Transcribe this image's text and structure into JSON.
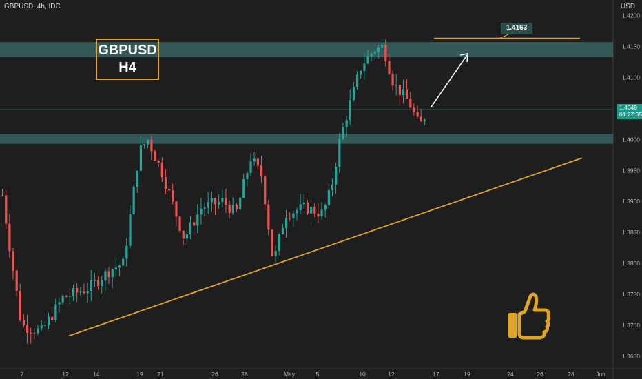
{
  "header": {
    "symbol_line": "GBPUSD, 4h, IDC",
    "currency": "USD"
  },
  "overlay": {
    "title_line1": "GBPUSD",
    "title_line2": "H4",
    "target_label": "1.4163"
  },
  "current_price": {
    "price": "1.4049",
    "countdown": "01:27:35"
  },
  "icons": {
    "thumb": "thumbs-up-icon",
    "arrow": "up-right-arrow-icon"
  },
  "colors": {
    "background": "#1e1e1e",
    "up": "#26a69a",
    "down": "#ef5350",
    "zone": "#3e6e6c",
    "trendline": "#e0a526",
    "axis_text": "#b2b5be"
  },
  "chart_data": {
    "type": "candlestick",
    "ylim": [
      1.363,
      1.4225
    ],
    "yticks": [
      "1.3650",
      "1.3700",
      "1.3750",
      "1.3800",
      "1.3850",
      "1.3900",
      "1.3950",
      "1.4000",
      "1.4050",
      "1.4100",
      "1.4150",
      "1.4200"
    ],
    "xticks": [
      "7",
      "12",
      "14",
      "19",
      "21",
      "26",
      "28",
      "May",
      "5",
      "10",
      "12",
      "17",
      "19",
      "24",
      "26",
      "28",
      "Jun"
    ],
    "zones": [
      {
        "from": 1.4133,
        "to": 1.4157
      },
      {
        "from": 1.3993,
        "to": 1.4009
      }
    ],
    "trendline": {
      "from": {
        "x": "12",
        "y": 1.3683
      },
      "to": {
        "x": "28",
        "y": 1.397
      }
    },
    "target_level": 1.4163,
    "last_price": 1.4049,
    "close_path": [
      [
        0,
        1.391
      ],
      [
        8,
        1.383
      ],
      [
        22,
        1.37
      ],
      [
        45,
        1.369
      ],
      [
        70,
        1.3745
      ],
      [
        100,
        1.376
      ],
      [
        125,
        1.379
      ],
      [
        140,
        1.38
      ],
      [
        158,
        1.398
      ],
      [
        168,
        1.4
      ],
      [
        185,
        1.3945
      ],
      [
        210,
        1.384
      ],
      [
        230,
        1.389
      ],
      [
        255,
        1.39
      ],
      [
        270,
        1.388
      ],
      [
        287,
        1.397
      ],
      [
        300,
        1.394
      ],
      [
        313,
        1.38
      ],
      [
        327,
        1.388
      ],
      [
        350,
        1.389
      ],
      [
        370,
        1.388
      ],
      [
        380,
        1.392
      ],
      [
        390,
        1.4
      ],
      [
        400,
        1.405
      ],
      [
        415,
        1.412
      ],
      [
        430,
        1.4145
      ],
      [
        440,
        1.415
      ],
      [
        452,
        1.409
      ],
      [
        470,
        1.406
      ],
      [
        482,
        1.402
      ],
      [
        492,
        1.4049
      ]
    ]
  }
}
